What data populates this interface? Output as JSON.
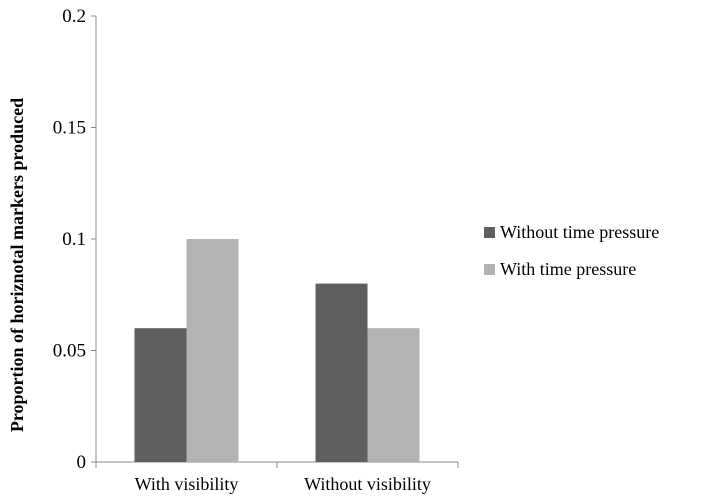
{
  "chart_data": {
    "type": "bar",
    "title": "",
    "xlabel": "",
    "ylabel": "Proportion of horiznotal markers produced",
    "categories": [
      "With visibility",
      "Without visibility"
    ],
    "series": [
      {
        "name": "Without time pressure",
        "values": [
          0.06,
          0.08
        ],
        "color": "#5f5f5f"
      },
      {
        "name": "With time pressure",
        "values": [
          0.1,
          0.06
        ],
        "color": "#b3b3b3"
      }
    ],
    "ylim": [
      0,
      0.2
    ],
    "yticks": [
      0,
      0.05,
      0.1,
      0.15,
      0.2
    ],
    "ytick_labels": [
      "0",
      "0.05",
      "0.1",
      "0.15",
      "0.2"
    ],
    "grid": false,
    "legend": "right"
  }
}
